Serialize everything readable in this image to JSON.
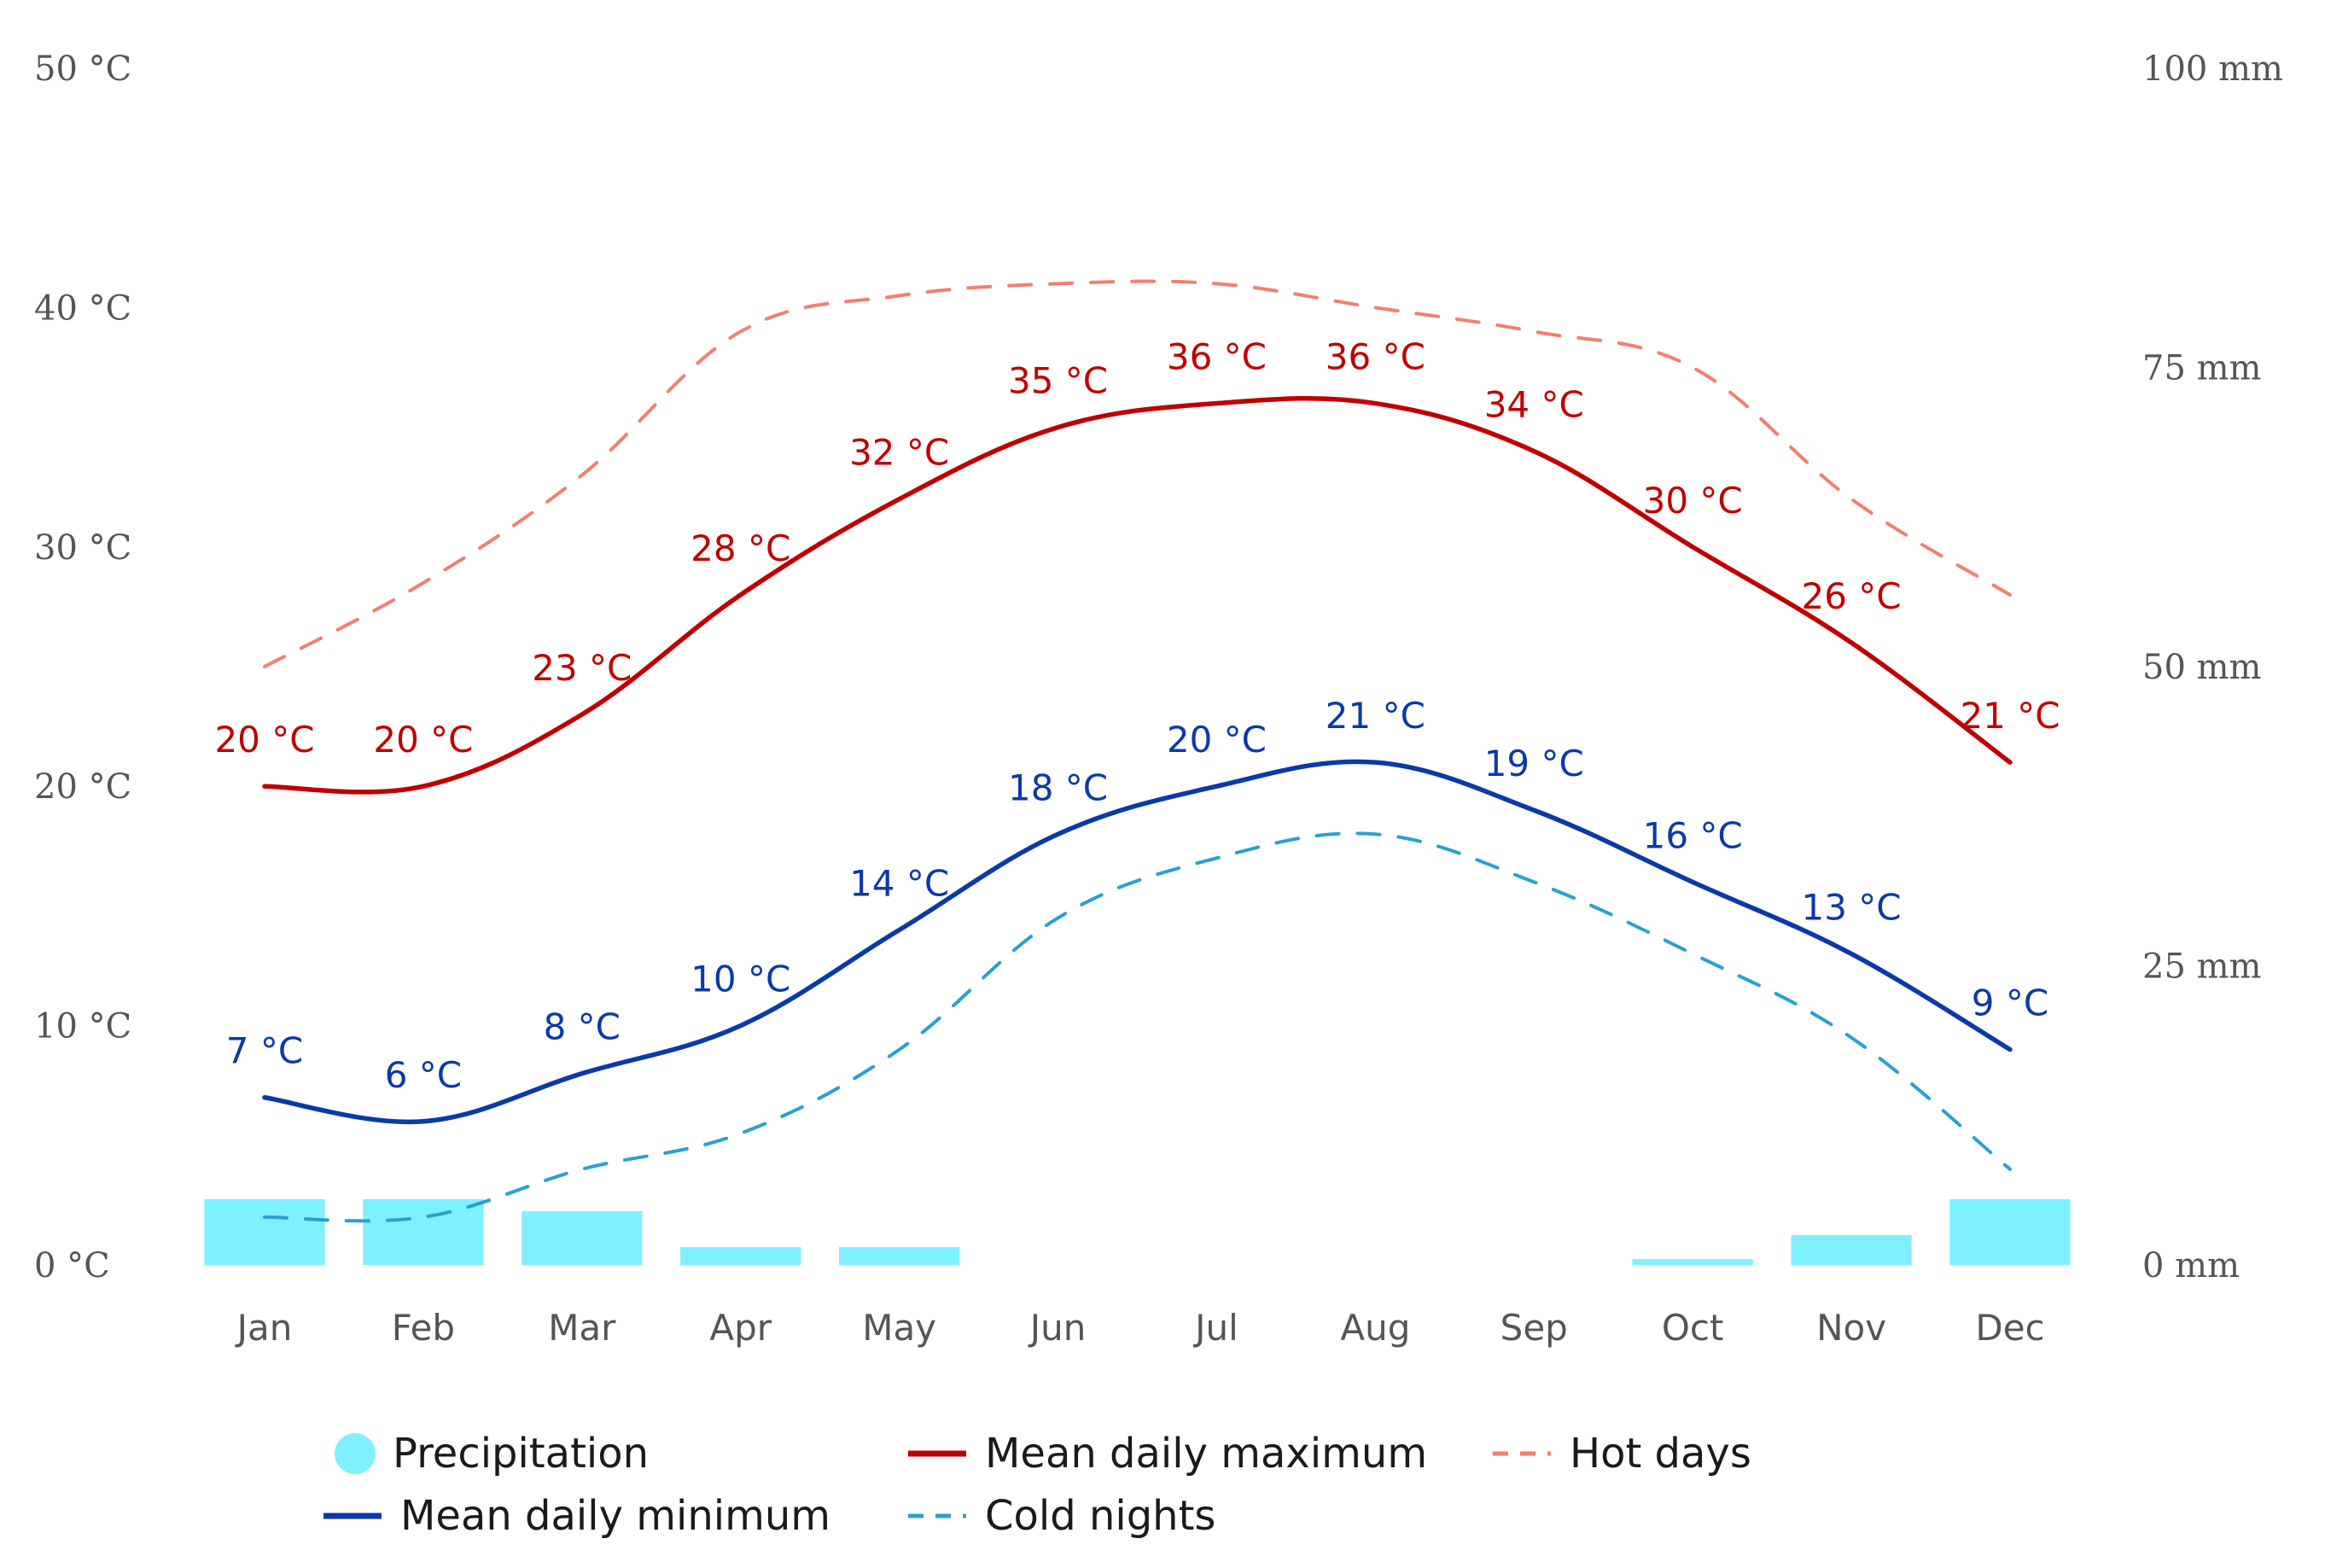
{
  "chart_data": {
    "type": "line",
    "categories": [
      "Jan",
      "Feb",
      "Mar",
      "Apr",
      "May",
      "Jun",
      "Jul",
      "Aug",
      "Sep",
      "Oct",
      "Nov",
      "Dec"
    ],
    "y_left": {
      "ticks": [
        "0 °C",
        "10 °C",
        "20 °C",
        "30 °C",
        "40 °C",
        "50 °C"
      ],
      "ylim": [
        0,
        50
      ]
    },
    "y_right": {
      "ticks": [
        "0 mm",
        "25 mm",
        "50 mm",
        "75 mm",
        "100 mm"
      ],
      "ylim": [
        0,
        100
      ]
    },
    "series": [
      {
        "name": "Hot days",
        "axis": "left",
        "style": "dashed",
        "color": "#f08070",
        "values": [
          25,
          28.5,
          33,
          39,
          40.5,
          41,
          41,
          40,
          39,
          37.5,
          32,
          28
        ]
      },
      {
        "name": "Mean daily maximum",
        "axis": "left",
        "style": "solid",
        "color": "#c00000",
        "values": [
          20,
          20,
          23,
          28,
          32,
          35,
          36,
          36,
          34,
          30,
          26,
          21
        ],
        "labels": [
          "20 °C",
          "20 °C",
          "23 °C",
          "28 °C",
          "32 °C",
          "35 °C",
          "36 °C",
          "36 °C",
          "34 °C",
          "30 °C",
          "26 °C",
          "21 °C"
        ]
      },
      {
        "name": "Mean daily minimum",
        "axis": "left",
        "style": "solid",
        "color": "#0a3aa8",
        "values": [
          7,
          6,
          8,
          10,
          14,
          18,
          20,
          21,
          19,
          16,
          13,
          9
        ],
        "labels": [
          "7 °C",
          "6 °C",
          "8 °C",
          "10 °C",
          "14 °C",
          "18 °C",
          "20 °C",
          "21 °C",
          "19 °C",
          "16 °C",
          "13 °C",
          "9 °C"
        ]
      },
      {
        "name": "Cold nights",
        "axis": "left",
        "style": "dashed",
        "color": "#2aa0d0",
        "values": [
          2,
          2,
          4,
          5.5,
          9,
          14.5,
          17,
          18,
          16,
          13,
          9.5,
          4
        ]
      },
      {
        "name": "Precipitation",
        "axis": "right",
        "type": "bar",
        "color": "#7ff0ff",
        "values": [
          5.5,
          5.5,
          4.5,
          1.5,
          1.5,
          0,
          0,
          0,
          0,
          0.5,
          2.5,
          5.5
        ]
      }
    ]
  },
  "legend": [
    {
      "key": "precip",
      "label": "Precipitation"
    },
    {
      "key": "max",
      "label": "Mean daily maximum"
    },
    {
      "key": "hot",
      "label": "Hot days"
    },
    {
      "key": "min",
      "label": "Mean daily minimum"
    },
    {
      "key": "cold",
      "label": "Cold nights"
    }
  ]
}
